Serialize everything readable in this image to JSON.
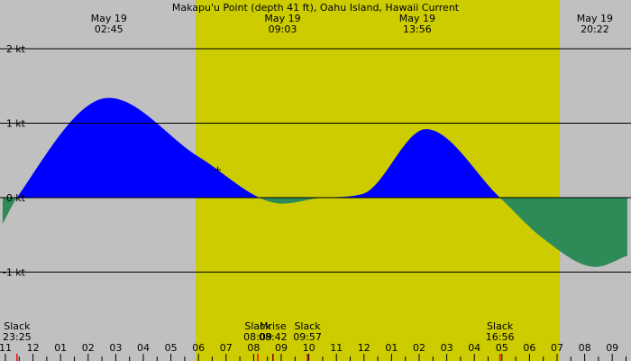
{
  "title": "Makapu'u Point (depth 41 ft), Oahu Island, Hawaii Current",
  "colors": {
    "night": "#c0c0c0",
    "day": "#cccc00",
    "flood": "#0000ff",
    "ebb": "#2e8b57",
    "line": "#000000",
    "slack_tick": "#ff0000",
    "moon_tick": "#800000"
  },
  "chart_data": {
    "type": "area",
    "title": "Makapu'u Point (depth 41 ft), Oahu Island, Hawaii Current",
    "units": "kt",
    "xlim": [
      10.9,
      33.55
    ],
    "ylim": [
      -2.3,
      2.5
    ],
    "y_ticks": [
      {
        "value": 2,
        "label": "2 kt"
      },
      {
        "value": 1,
        "label": "1 kt"
      },
      {
        "value": 0,
        "label": "0 kt"
      },
      {
        "value": -1,
        "label": "-1 kt"
      }
    ],
    "hour_ticks": [
      {
        "hour": 11,
        "label": "11"
      },
      {
        "hour": 12,
        "label": "12"
      },
      {
        "hour": 13,
        "label": "01"
      },
      {
        "hour": 14,
        "label": "02"
      },
      {
        "hour": 15,
        "label": "03"
      },
      {
        "hour": 16,
        "label": "04"
      },
      {
        "hour": 17,
        "label": "05"
      },
      {
        "hour": 18,
        "label": "06"
      },
      {
        "hour": 19,
        "label": "07"
      },
      {
        "hour": 20,
        "label": "08"
      },
      {
        "hour": 21,
        "label": "09"
      },
      {
        "hour": 22,
        "label": "10"
      },
      {
        "hour": 23,
        "label": "11"
      },
      {
        "hour": 24,
        "label": "12"
      },
      {
        "hour": 25,
        "label": "01"
      },
      {
        "hour": 26,
        "label": "02"
      },
      {
        "hour": 27,
        "label": "03"
      },
      {
        "hour": 28,
        "label": "04"
      },
      {
        "hour": 29,
        "label": "05"
      },
      {
        "hour": 30,
        "label": "06"
      },
      {
        "hour": 31,
        "label": "07"
      },
      {
        "hour": 32,
        "label": "08"
      },
      {
        "hour": 33,
        "label": "09"
      }
    ],
    "daylight": [
      {
        "start": 17.9,
        "end": 31.1
      }
    ],
    "series": [
      {
        "x": [
          10.9,
          11.42,
          14.75,
          18.0,
          21.05,
          22.5,
          23.95,
          26.25,
          28.93,
          30.5,
          32.4,
          33.55
        ],
        "y": [
          -0.35,
          0.0,
          1.34,
          0.55,
          -0.08,
          0.0,
          0.05,
          0.92,
          0.0,
          -0.55,
          -0.93,
          -0.78
        ]
      }
    ],
    "extremes": [
      {
        "date": "May 19",
        "time": "02:45",
        "hour": 14.75
      },
      {
        "date": "May 19",
        "time": "09:03",
        "hour": 21.05
      },
      {
        "date": "May 19",
        "time": "13:56",
        "hour": 25.93
      },
      {
        "date": "May 19",
        "time": "20:22",
        "hour": 32.37
      }
    ],
    "events": [
      {
        "label": "Slack",
        "time": "23:25",
        "hour": 11.42,
        "kind": "slack"
      },
      {
        "label": "Slack",
        "time": "08:09",
        "hour": 20.15,
        "kind": "slack"
      },
      {
        "label": "Mrise",
        "time": "08:42",
        "hour": 20.7,
        "kind": "moon"
      },
      {
        "label": "Slack",
        "time": "09:57",
        "hour": 21.95,
        "kind": "slack"
      },
      {
        "label": "Slack",
        "time": "16:56",
        "hour": 28.93,
        "kind": "slack"
      }
    ],
    "marker": {
      "label": "+",
      "hour": 18.7,
      "value": 0.38
    }
  }
}
